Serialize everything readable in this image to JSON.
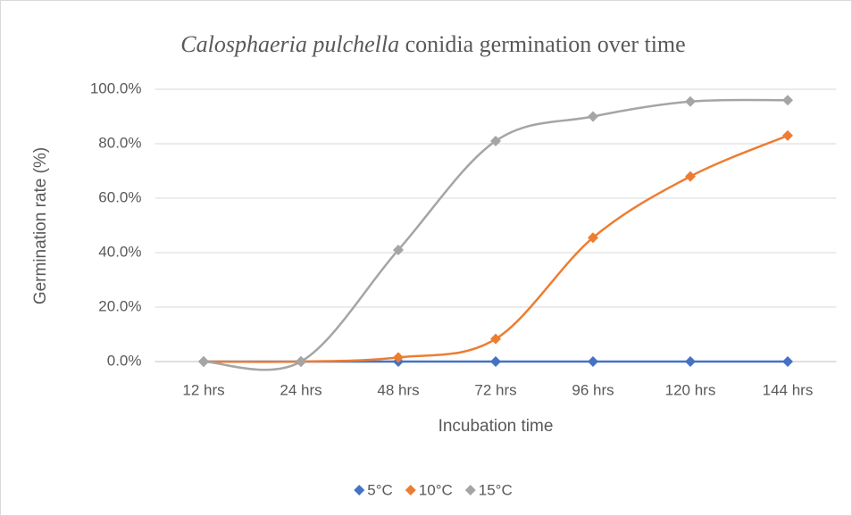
{
  "chart_data": {
    "type": "line",
    "title": {
      "italic": "Calosphaeria pulchella",
      "text": "conidia germination over time"
    },
    "x_label": "Incubation time",
    "y_label": "Germination rate (%)",
    "categories": [
      "12 hrs",
      "24 hrs",
      "48 hrs",
      "72 hrs",
      "96 hrs",
      "120 hrs",
      "144 hrs"
    ],
    "series": [
      {
        "name": "5°C",
        "color": "#4472c4",
        "values": [
          0,
          0,
          0,
          0,
          0,
          0,
          0
        ]
      },
      {
        "name": "10°C",
        "color": "#ed7d31",
        "values": [
          0,
          0,
          1.5,
          8.3,
          45.5,
          68,
          83
        ]
      },
      {
        "name": "15°C",
        "color": "#a5a5a5",
        "values": [
          0,
          0,
          41,
          81,
          90,
          95.5,
          96
        ]
      }
    ],
    "ylim": [
      0,
      100
    ],
    "yticks": [
      {
        "value": 0,
        "label": "0.0%"
      },
      {
        "value": 20,
        "label": "20.0%"
      },
      {
        "value": 40,
        "label": "40.0%"
      },
      {
        "value": 60,
        "label": "60.0%"
      },
      {
        "value": 80,
        "label": "80.0%"
      },
      {
        "value": 100,
        "label": "100.0%"
      }
    ],
    "grid": true,
    "legend": "bottom"
  }
}
